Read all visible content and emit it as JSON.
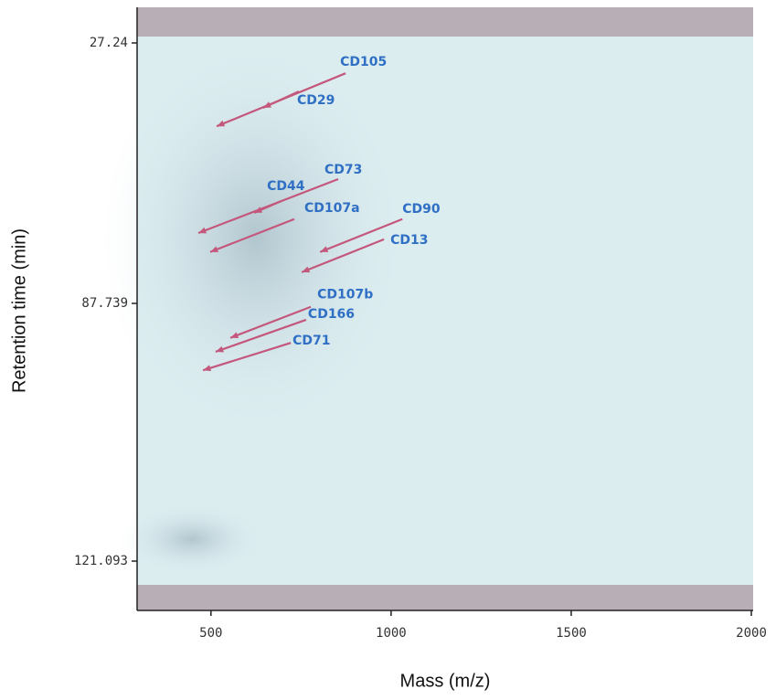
{
  "chart_data": {
    "type": "annotated-map",
    "xlabel": "Mass (m/z)",
    "ylabel": "Retention time (min)",
    "xlim": [
      295,
      2005
    ],
    "xticks": [
      500,
      1000,
      1500,
      2000
    ],
    "ylim": [
      19.4,
      127.1
    ],
    "yticks": [
      27.24,
      87.739,
      121.093
    ],
    "annotations": [
      {
        "label": "CD105",
        "x": 516,
        "y": 46.6
      },
      {
        "label": "CD29",
        "x": 645,
        "y": 42.3
      },
      {
        "label": "CD73",
        "x": 465,
        "y": 71.4
      },
      {
        "label": "CD44",
        "x": 620,
        "y": 66.7
      },
      {
        "label": "CD107a",
        "x": 498,
        "y": 75.8
      },
      {
        "label": "CD90",
        "x": 803,
        "y": 75.8
      },
      {
        "label": "CD13",
        "x": 752,
        "y": 80.5
      },
      {
        "label": "CD107b",
        "x": 554,
        "y": 92.2
      },
      {
        "label": "CD166",
        "x": 513,
        "y": 94.0
      },
      {
        "label": "CD71",
        "x": 478,
        "y": 96.4
      }
    ],
    "arrow_color": "#c4577c"
  }
}
